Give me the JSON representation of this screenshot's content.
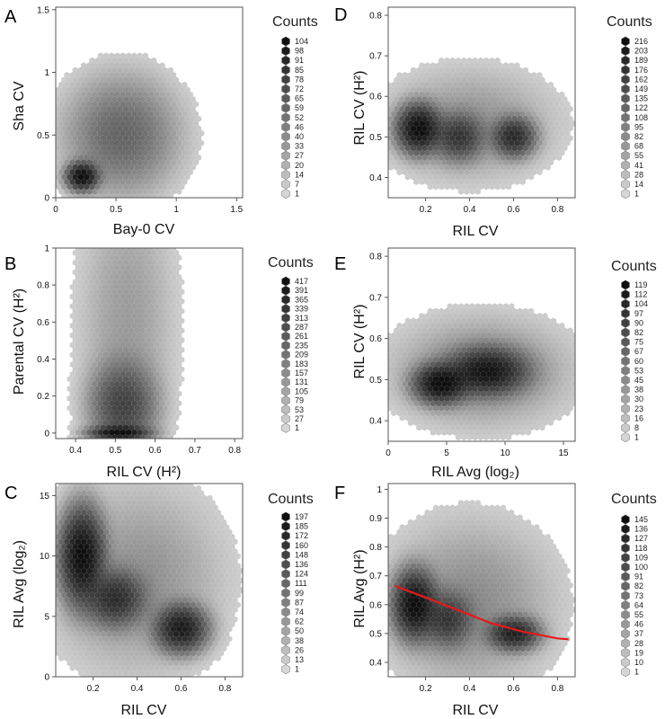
{
  "figure": {
    "panels_order": [
      "A",
      "B",
      "C",
      "D",
      "E",
      "F"
    ]
  },
  "chart_data": [
    {
      "panel": "A",
      "type": "heatmap",
      "xlabel": "Bay-0 CV",
      "ylabel": "Sha CV",
      "xlim": [
        0,
        1.55
      ],
      "ylim": [
        0,
        1.52
      ],
      "xticks": [
        "0",
        "0.5",
        "1",
        "1.5"
      ],
      "xtick_values": [
        0,
        0.5,
        1,
        1.5
      ],
      "yticks": [
        "0",
        "0.5",
        "1",
        "1.5"
      ],
      "ytick_values": [
        0,
        0.5,
        1,
        1.5
      ],
      "legend_title": "Counts",
      "counts": [
        "104",
        "98",
        "91",
        "85",
        "78",
        "72",
        "65",
        "59",
        "52",
        "46",
        "40",
        "33",
        "27",
        "20",
        "14",
        "7",
        "1"
      ],
      "density_clusters": [
        {
          "x": 0.22,
          "y": 0.17,
          "sx": 0.07,
          "sy": 0.06,
          "peak": 104
        },
        {
          "x": 0.55,
          "y": 0.5,
          "sx": 0.25,
          "sy": 0.25,
          "peak": 20
        }
      ],
      "grid": false,
      "legend_position": "right"
    },
    {
      "panel": "B",
      "type": "heatmap",
      "xlabel": "RIL CV (H²)",
      "ylabel": "Parental CV (H²)",
      "xlim": [
        0.35,
        0.82
      ],
      "ylim": [
        -0.03,
        1.0
      ],
      "xticks": [
        "0.4",
        "0.5",
        "0.6",
        "0.7",
        "0.8"
      ],
      "xtick_values": [
        0.4,
        0.5,
        0.6,
        0.7,
        0.8
      ],
      "yticks": [
        "0",
        "0.2",
        "0.4",
        "0.6",
        "0.8",
        "1"
      ],
      "ytick_values": [
        0,
        0.2,
        0.4,
        0.6,
        0.8,
        1
      ],
      "legend_title": "Counts",
      "counts": [
        "417",
        "391",
        "365",
        "339",
        "313",
        "287",
        "261",
        "235",
        "209",
        "183",
        "157",
        "131",
        "105",
        "79",
        "53",
        "27",
        "1"
      ],
      "density_clusters": [
        {
          "x": 0.51,
          "y": 0.0,
          "sx": 0.035,
          "sy": 0.02,
          "peak": 417
        },
        {
          "x": 0.52,
          "y": 0.15,
          "sx": 0.04,
          "sy": 0.12,
          "peak": 120
        },
        {
          "x": 0.53,
          "y": 0.6,
          "sx": 0.06,
          "sy": 0.4,
          "peak": 10
        }
      ],
      "grid": false,
      "legend_position": "right"
    },
    {
      "panel": "C",
      "type": "heatmap",
      "xlabel": "RIL CV",
      "ylabel": "RIL Avg (log₂)",
      "xlim": [
        0.03,
        0.88
      ],
      "ylim": [
        0,
        16
      ],
      "xticks": [
        "0.2",
        "0.4",
        "0.6",
        "0.8"
      ],
      "xtick_values": [
        0.2,
        0.4,
        0.6,
        0.8
      ],
      "yticks": [
        "0",
        "5",
        "10",
        "15"
      ],
      "ytick_values": [
        0,
        5,
        10,
        15
      ],
      "legend_title": "Counts",
      "counts": [
        "197",
        "185",
        "172",
        "160",
        "148",
        "136",
        "124",
        "111",
        "99",
        "87",
        "74",
        "62",
        "50",
        "38",
        "26",
        "13",
        "1"
      ],
      "density_clusters": [
        {
          "x": 0.15,
          "y": 10,
          "sx": 0.05,
          "sy": 2.0,
          "peak": 197
        },
        {
          "x": 0.3,
          "y": 6.5,
          "sx": 0.07,
          "sy": 1.2,
          "peak": 100
        },
        {
          "x": 0.6,
          "y": 4,
          "sx": 0.06,
          "sy": 1.0,
          "peak": 150
        },
        {
          "x": 0.4,
          "y": 8,
          "sx": 0.2,
          "sy": 4,
          "peak": 10
        }
      ],
      "grid": false,
      "legend_position": "right"
    },
    {
      "panel": "D",
      "type": "heatmap",
      "xlabel": "RIL CV",
      "ylabel": "RIL CV (H²)",
      "xlim": [
        0.03,
        0.88
      ],
      "ylim": [
        0.35,
        0.82
      ],
      "xticks": [
        "0.2",
        "0.4",
        "0.6",
        "0.8"
      ],
      "xtick_values": [
        0.2,
        0.4,
        0.6,
        0.8
      ],
      "yticks": [
        "0.4",
        "0.5",
        "0.6",
        "0.7",
        "0.8"
      ],
      "ytick_values": [
        0.4,
        0.5,
        0.6,
        0.7,
        0.8
      ],
      "legend_title": "Counts",
      "counts": [
        "216",
        "203",
        "189",
        "176",
        "162",
        "149",
        "135",
        "122",
        "108",
        "95",
        "82",
        "68",
        "55",
        "41",
        "28",
        "14",
        "1"
      ],
      "density_clusters": [
        {
          "x": 0.17,
          "y": 0.52,
          "sx": 0.05,
          "sy": 0.03,
          "peak": 216
        },
        {
          "x": 0.35,
          "y": 0.5,
          "sx": 0.06,
          "sy": 0.03,
          "peak": 90
        },
        {
          "x": 0.6,
          "y": 0.5,
          "sx": 0.05,
          "sy": 0.025,
          "peak": 120
        },
        {
          "x": 0.4,
          "y": 0.53,
          "sx": 0.2,
          "sy": 0.07,
          "peak": 10
        }
      ],
      "grid": false,
      "legend_position": "right"
    },
    {
      "panel": "E",
      "type": "heatmap",
      "xlabel": "RIL Avg (log₂)",
      "ylabel": "RIL CV (H²)",
      "xlim": [
        0,
        16
      ],
      "ylim": [
        0.35,
        0.82
      ],
      "xticks": [
        "0",
        "5",
        "10",
        "15"
      ],
      "xtick_values": [
        0,
        5,
        10,
        15
      ],
      "yticks": [
        "0.4",
        "0.5",
        "0.6",
        "0.7",
        "0.8"
      ],
      "ytick_values": [
        0.4,
        0.5,
        0.6,
        0.7,
        0.8
      ],
      "legend_title": "Counts",
      "counts": [
        "119",
        "112",
        "104",
        "97",
        "90",
        "82",
        "75",
        "67",
        "60",
        "53",
        "45",
        "38",
        "30",
        "23",
        "16",
        "8",
        "1"
      ],
      "density_clusters": [
        {
          "x": 4.5,
          "y": 0.49,
          "sx": 1.2,
          "sy": 0.025,
          "peak": 119
        },
        {
          "x": 8.5,
          "y": 0.52,
          "sx": 1.8,
          "sy": 0.03,
          "peak": 100
        },
        {
          "x": 8,
          "y": 0.52,
          "sx": 4,
          "sy": 0.07,
          "peak": 10
        }
      ],
      "grid": false,
      "legend_position": "right"
    },
    {
      "panel": "F",
      "type": "heatmap",
      "xlabel": "RIL CV",
      "ylabel": "RIL Avg (H²)",
      "xlim": [
        0.03,
        0.88
      ],
      "ylim": [
        0.35,
        1.02
      ],
      "xticks": [
        "0.2",
        "0.4",
        "0.6",
        "0.8"
      ],
      "xtick_values": [
        0.2,
        0.4,
        0.6,
        0.8
      ],
      "yticks": [
        "0.4",
        "0.5",
        "0.6",
        "0.7",
        "0.8",
        "0.9",
        "1"
      ],
      "ytick_values": [
        0.4,
        0.5,
        0.6,
        0.7,
        0.8,
        0.9,
        1
      ],
      "legend_title": "Counts",
      "counts": [
        "145",
        "136",
        "127",
        "118",
        "109",
        "100",
        "91",
        "82",
        "73",
        "64",
        "55",
        "46",
        "37",
        "28",
        "19",
        "10",
        "1"
      ],
      "density_clusters": [
        {
          "x": 0.15,
          "y": 0.6,
          "sx": 0.05,
          "sy": 0.06,
          "peak": 145
        },
        {
          "x": 0.3,
          "y": 0.55,
          "sx": 0.06,
          "sy": 0.05,
          "peak": 60
        },
        {
          "x": 0.6,
          "y": 0.5,
          "sx": 0.06,
          "sy": 0.03,
          "peak": 100
        },
        {
          "x": 0.4,
          "y": 0.6,
          "sx": 0.2,
          "sy": 0.15,
          "peak": 10
        }
      ],
      "trend_line": {
        "color": "#e31a1c",
        "x": [
          0.06,
          0.2,
          0.35,
          0.5,
          0.65,
          0.8,
          0.85
        ],
        "y": [
          0.665,
          0.625,
          0.58,
          0.535,
          0.505,
          0.483,
          0.48
        ]
      },
      "grid": false,
      "legend_position": "right"
    }
  ]
}
